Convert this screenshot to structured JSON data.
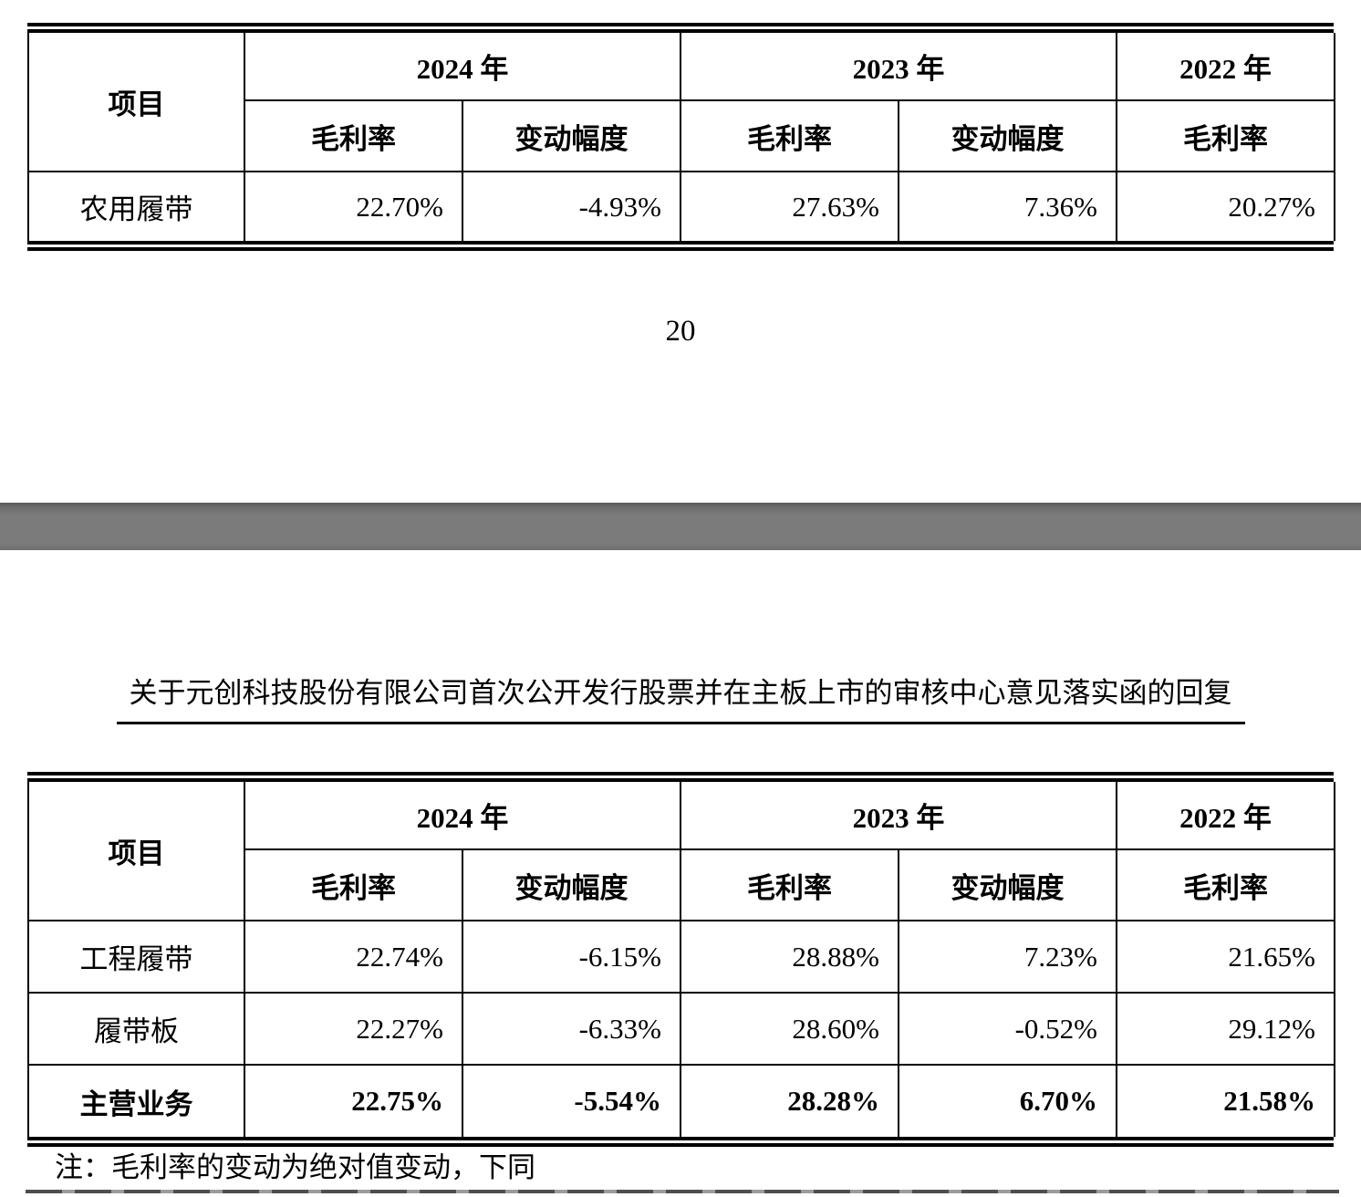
{
  "document": {
    "page_number": "20",
    "section_title": "关于元创科技股份有限公司首次公开发行股票并在主板上市的审核中心意见落实函的回复",
    "footnote": "注：毛利率的变动为绝对值变动，下同"
  },
  "colors": {
    "page_background": "#ffffff",
    "table_border": "#000000",
    "text": "#000000",
    "page_separator_gray": "#7b7b7b"
  },
  "table_top": {
    "header_row1": [
      "项目",
      "2024 年",
      "2023 年",
      "2022 年"
    ],
    "header_row2": [
      "毛利率",
      "变动幅度",
      "毛利率",
      "变动幅度",
      "毛利率"
    ],
    "rows": [
      {
        "label": "农用履带",
        "values": [
          "22.70%",
          "-4.93%",
          "27.63%",
          "7.36%",
          "20.27%"
        ]
      }
    ]
  },
  "table_bottom": {
    "header_row1": [
      "项目",
      "2024 年",
      "2023 年",
      "2022 年"
    ],
    "header_row2": [
      "毛利率",
      "变动幅度",
      "毛利率",
      "变动幅度",
      "毛利率"
    ],
    "rows": [
      {
        "label": "工程履带",
        "values": [
          "22.74%",
          "-6.15%",
          "28.88%",
          "7.23%",
          "21.65%"
        ]
      },
      {
        "label": "履带板",
        "values": [
          "22.27%",
          "-6.33%",
          "28.60%",
          "-0.52%",
          "29.12%"
        ]
      },
      {
        "label": "主营业务",
        "values": [
          "22.75%",
          "-5.54%",
          "28.28%",
          "6.70%",
          "21.58%"
        ]
      }
    ]
  }
}
